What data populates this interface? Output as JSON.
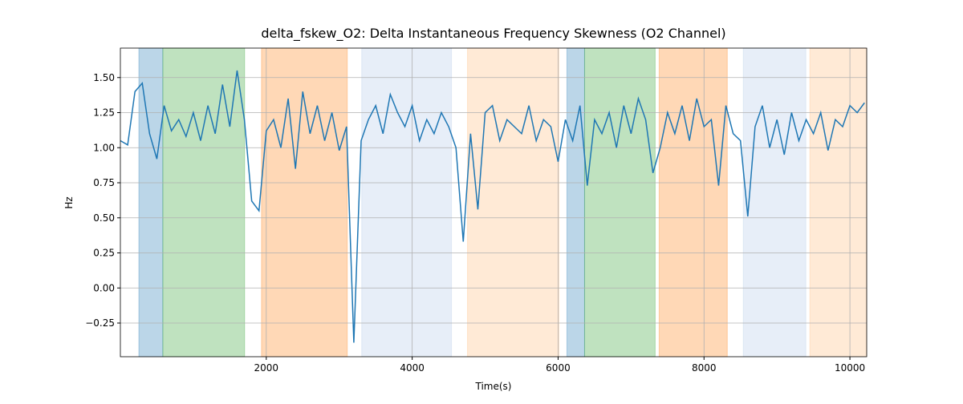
{
  "chart_data": {
    "type": "line",
    "title": "delta_fskew_O2: Delta Instantaneous Frequency Skewness (O2 Channel)",
    "xlabel": "Time(s)",
    "ylabel": "Hz",
    "xlim": [
      0,
      10230
    ],
    "ylim": [
      -0.49,
      1.71
    ],
    "xticks": [
      2000,
      4000,
      6000,
      8000,
      10000
    ],
    "yticks": [
      {
        "value": -0.25,
        "label": "−0.25"
      },
      {
        "value": 0,
        "label": "0.00"
      },
      {
        "value": 0.25,
        "label": "0.25"
      },
      {
        "value": 0.5,
        "label": "0.50"
      },
      {
        "value": 0.75,
        "label": "0.75"
      },
      {
        "value": 1,
        "label": "1.00"
      },
      {
        "value": 1.25,
        "label": "1.25"
      },
      {
        "value": 1.5,
        "label": "1.50"
      }
    ],
    "grid": true,
    "spans": [
      {
        "start": 253,
        "end": 582,
        "color": "#1f77b4"
      },
      {
        "start": 582,
        "end": 1703,
        "color": "#2ca02c"
      },
      {
        "start": 1934,
        "end": 3110,
        "color": "#ff7f0e"
      },
      {
        "start": 3308,
        "end": 4538,
        "color": "#aec7e8"
      },
      {
        "start": 4758,
        "end": 6011,
        "color": "#ffbb78"
      },
      {
        "start": 6121,
        "end": 6363,
        "color": "#1f77b4"
      },
      {
        "start": 6363,
        "end": 7330,
        "color": "#2ca02c"
      },
      {
        "start": 7385,
        "end": 8319,
        "color": "#ff7f0e"
      },
      {
        "start": 8538,
        "end": 9396,
        "color": "#aec7e8"
      },
      {
        "start": 9451,
        "end": 10230,
        "color": "#ffbb78"
      }
    ],
    "x": [
      0,
      100,
      200,
      300,
      400,
      500,
      600,
      700,
      800,
      900,
      1000,
      1100,
      1200,
      1300,
      1400,
      1500,
      1600,
      1700,
      1800,
      1900,
      2000,
      2100,
      2200,
      2300,
      2400,
      2500,
      2600,
      2700,
      2800,
      2900,
      3000,
      3100,
      3200,
      3300,
      3400,
      3500,
      3600,
      3700,
      3800,
      3900,
      4000,
      4100,
      4200,
      4300,
      4400,
      4500,
      4600,
      4700,
      4800,
      4900,
      5000,
      5100,
      5200,
      5300,
      5400,
      5500,
      5600,
      5700,
      5800,
      5900,
      6000,
      6100,
      6200,
      6300,
      6400,
      6500,
      6600,
      6700,
      6800,
      6900,
      7000,
      7100,
      7200,
      7300,
      7400,
      7500,
      7600,
      7700,
      7800,
      7900,
      8000,
      8100,
      8200,
      8300,
      8400,
      8500,
      8600,
      8700,
      8800,
      8900,
      9000,
      9100,
      9200,
      9300,
      9400,
      9500,
      9600,
      9700,
      9800,
      9900,
      10000,
      10100,
      10200
    ],
    "series": [
      {
        "name": "delta_fskew_O2",
        "color": "#1f77b4",
        "values": [
          1.05,
          1.02,
          1.4,
          1.46,
          1.1,
          0.92,
          1.3,
          1.12,
          1.2,
          1.08,
          1.25,
          1.05,
          1.3,
          1.1,
          1.45,
          1.15,
          1.55,
          1.2,
          0.62,
          0.55,
          1.12,
          1.2,
          1.0,
          1.35,
          0.85,
          1.4,
          1.1,
          1.3,
          1.05,
          1.25,
          0.98,
          1.15,
          -0.39,
          1.05,
          1.2,
          1.3,
          1.1,
          1.38,
          1.25,
          1.15,
          1.3,
          1.05,
          1.2,
          1.1,
          1.25,
          1.15,
          1.0,
          0.33,
          1.1,
          0.56,
          1.25,
          1.3,
          1.05,
          1.2,
          1.15,
          1.1,
          1.3,
          1.05,
          1.2,
          1.15,
          0.9,
          1.2,
          1.05,
          1.3,
          0.73,
          1.2,
          1.1,
          1.25,
          1.0,
          1.3,
          1.1,
          1.35,
          1.2,
          0.82,
          1.0,
          1.25,
          1.1,
          1.3,
          1.05,
          1.35,
          1.15,
          1.2,
          0.73,
          1.3,
          1.1,
          1.05,
          0.51,
          1.15,
          1.3,
          1.0,
          1.2,
          0.95,
          1.25,
          1.05,
          1.2,
          1.1,
          1.25,
          0.98,
          1.2,
          1.15,
          1.3,
          1.25,
          1.32
        ]
      }
    ]
  }
}
